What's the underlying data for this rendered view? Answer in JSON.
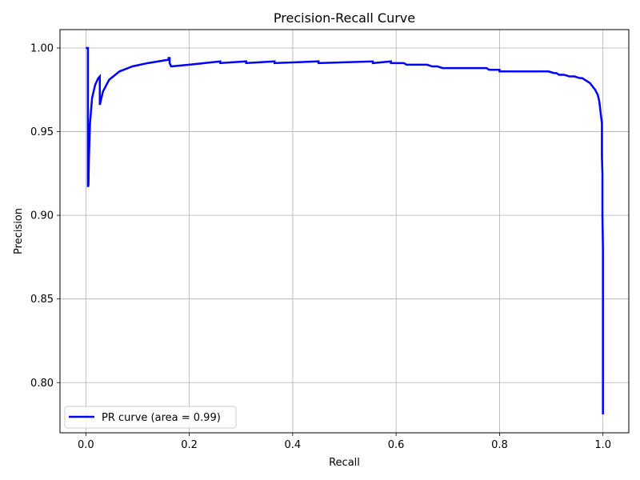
{
  "chart_data": {
    "type": "line",
    "title": "Precision-Recall Curve",
    "xlabel": "Recall",
    "ylabel": "Precision",
    "xlim": [
      -0.05,
      1.05
    ],
    "ylim": [
      0.77,
      1.011
    ],
    "xticks": [
      0.0,
      0.2,
      0.4,
      0.6,
      0.8,
      1.0
    ],
    "xtick_labels": [
      "0.0",
      "0.2",
      "0.4",
      "0.6",
      "0.8",
      "1.0"
    ],
    "yticks": [
      0.8,
      0.85,
      0.9,
      0.95,
      1.0
    ],
    "ytick_labels": [
      "0.80",
      "0.85",
      "0.90",
      "0.95",
      "1.00"
    ],
    "grid": true,
    "legend_position": "lower-left",
    "series": [
      {
        "name": "PR curve (area = 0.99)",
        "color": "#0000ff",
        "x": [
          0.0,
          0.004,
          0.004,
          0.005,
          0.006,
          0.008,
          0.012,
          0.018,
          0.024,
          0.027,
          0.027,
          0.033,
          0.045,
          0.065,
          0.09,
          0.12,
          0.16,
          0.16,
          0.162,
          0.162,
          0.165,
          0.2,
          0.26,
          0.26,
          0.31,
          0.31,
          0.365,
          0.365,
          0.45,
          0.45,
          0.555,
          0.555,
          0.59,
          0.59,
          0.615,
          0.62,
          0.63,
          0.66,
          0.67,
          0.68,
          0.69,
          0.7,
          0.72,
          0.74,
          0.76,
          0.775,
          0.78,
          0.8,
          0.8,
          0.84,
          0.845,
          0.875,
          0.885,
          0.895,
          0.905,
          0.91,
          0.915,
          0.925,
          0.935,
          0.945,
          0.955,
          0.96,
          0.965,
          0.97,
          0.975,
          0.98,
          0.985,
          0.99,
          0.993,
          0.996,
          0.998,
          0.998,
          0.999,
          0.999,
          1.0,
          1.0,
          1.0,
          1.0
        ],
        "y": [
          1.0,
          1.0,
          0.917,
          0.918,
          0.935,
          0.955,
          0.97,
          0.978,
          0.982,
          0.983,
          0.966,
          0.974,
          0.981,
          0.986,
          0.989,
          0.991,
          0.993,
          0.994,
          0.994,
          0.991,
          0.989,
          0.99,
          0.992,
          0.991,
          0.992,
          0.991,
          0.992,
          0.991,
          0.992,
          0.991,
          0.992,
          0.991,
          0.992,
          0.991,
          0.991,
          0.99,
          0.99,
          0.99,
          0.989,
          0.989,
          0.988,
          0.988,
          0.988,
          0.988,
          0.988,
          0.988,
          0.987,
          0.987,
          0.986,
          0.986,
          0.986,
          0.986,
          0.986,
          0.986,
          0.985,
          0.985,
          0.984,
          0.984,
          0.983,
          0.983,
          0.982,
          0.982,
          0.981,
          0.98,
          0.979,
          0.977,
          0.975,
          0.972,
          0.968,
          0.96,
          0.955,
          0.935,
          0.925,
          0.9,
          0.88,
          0.86,
          0.84,
          0.781
        ]
      }
    ]
  }
}
